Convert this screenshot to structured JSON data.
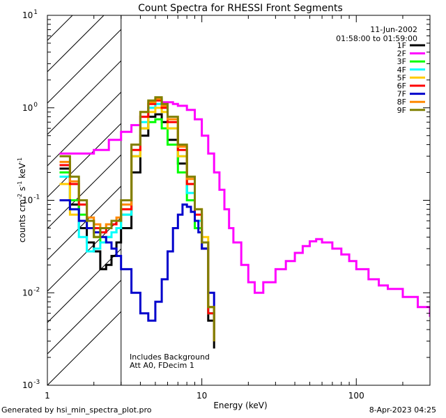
{
  "chart_data": {
    "type": "line",
    "title": "Count Spectra for RHESSI Front Segments",
    "xlabel": "Energy (keV)",
    "ylabel": "counts cm^-2 s^-1 keV^-1",
    "ylabel_parts": {
      "pre": "counts cm",
      "exp1": "-2",
      "mid": " s",
      "exp2": "-1",
      "mid2": " keV",
      "exp3": "-1"
    },
    "x_scale": "log",
    "y_scale": "log",
    "xlim": [
      1,
      300
    ],
    "ylim": [
      0.001,
      10
    ],
    "x_ticks": [
      {
        "value": 1,
        "label": "1"
      },
      {
        "value": 10,
        "label": "10"
      },
      {
        "value": 100,
        "label": "100"
      }
    ],
    "y_ticks": [
      {
        "value": 0.001,
        "base": "10",
        "exp": "-3"
      },
      {
        "value": 0.01,
        "base": "10",
        "exp": "-2"
      },
      {
        "value": 0.1,
        "base": "10",
        "exp": "-1"
      },
      {
        "value": 1,
        "base": "10",
        "exp": "0"
      },
      {
        "value": 10,
        "base": "10",
        "exp": "1"
      }
    ],
    "hatched_region_keV": [
      1,
      3
    ],
    "date": "11-Jun-2002",
    "time_range": "01:58:00 to 01:59:00",
    "annotations": [
      "Includes Background",
      "Att A0, FDecim 1"
    ],
    "legend_position": "top-right",
    "series": [
      {
        "name": "1F",
        "color": "#000000",
        "x": [
          1.2,
          1.4,
          1.6,
          1.8,
          2.0,
          2.2,
          2.4,
          2.6,
          2.8,
          3.0,
          3.5,
          4.0,
          4.5,
          5.0,
          5.5,
          6.0,
          7.0,
          8.0,
          9.0,
          10.0,
          11.0,
          12.0
        ],
        "y": [
          0.22,
          0.09,
          0.05,
          0.035,
          0.028,
          0.018,
          0.02,
          0.025,
          0.035,
          0.05,
          0.2,
          0.5,
          0.8,
          0.85,
          0.7,
          0.45,
          0.25,
          0.12,
          0.06,
          0.03,
          0.005,
          0.0025
        ]
      },
      {
        "name": "2F",
        "color": "#ff00ff",
        "x": [
          1.2,
          1.5,
          2.0,
          2.5,
          3.0,
          3.5,
          4.0,
          4.5,
          5.0,
          5.5,
          6.0,
          6.5,
          7.0,
          8.0,
          9.0,
          10.0,
          11.0,
          12.0,
          13.0,
          14.0,
          15.0,
          16.0,
          18.0,
          20.0,
          22.0,
          25.0,
          30.0,
          35.0,
          40.0,
          45.0,
          50.0,
          55.0,
          60.0,
          70.0,
          80.0,
          90.0,
          100.0,
          120.0,
          140.0,
          160.0,
          200.0,
          250.0,
          300.0
        ],
        "y": [
          0.32,
          0.32,
          0.35,
          0.45,
          0.55,
          0.65,
          0.8,
          1.0,
          1.1,
          1.15,
          1.15,
          1.1,
          1.05,
          0.95,
          0.75,
          0.5,
          0.32,
          0.2,
          0.13,
          0.08,
          0.05,
          0.035,
          0.02,
          0.013,
          0.01,
          0.013,
          0.018,
          0.022,
          0.027,
          0.032,
          0.036,
          0.038,
          0.035,
          0.03,
          0.026,
          0.022,
          0.018,
          0.014,
          0.012,
          0.011,
          0.009,
          0.007,
          0.0055
        ]
      },
      {
        "name": "3F",
        "color": "#00ff00",
        "x": [
          1.2,
          1.4,
          1.6,
          1.8,
          2.0,
          2.2,
          2.4,
          2.6,
          2.8,
          3.0,
          3.5,
          4.0,
          4.5,
          5.0,
          5.5,
          6.0,
          7.0,
          8.0,
          9.0,
          10.0,
          11.0,
          12.0
        ],
        "y": [
          0.2,
          0.1,
          0.07,
          0.05,
          0.04,
          0.035,
          0.04,
          0.045,
          0.05,
          0.07,
          0.3,
          0.6,
          0.7,
          0.75,
          0.6,
          0.4,
          0.2,
          0.1,
          0.05,
          0.03,
          0.006,
          0.003
        ]
      },
      {
        "name": "4F",
        "color": "#00ffff",
        "x": [
          1.2,
          1.4,
          1.6,
          1.8,
          2.0,
          2.2,
          2.4,
          2.6,
          2.8,
          3.0,
          3.5,
          4.0,
          4.5,
          5.0,
          5.5,
          6.0,
          7.0,
          8.0,
          9.0,
          10.0,
          11.0,
          12.0
        ],
        "y": [
          0.18,
          0.08,
          0.04,
          0.028,
          0.03,
          0.035,
          0.04,
          0.045,
          0.05,
          0.07,
          0.3,
          0.7,
          1.0,
          1.1,
          0.9,
          0.6,
          0.3,
          0.12,
          0.06,
          0.03,
          0.006,
          0.003
        ]
      },
      {
        "name": "5F",
        "color": "#ffcc00",
        "x": [
          1.2,
          1.4,
          1.6,
          1.8,
          2.0,
          2.2,
          2.4,
          2.6,
          2.8,
          3.0,
          3.5,
          4.0,
          4.5,
          5.0,
          5.5,
          6.0,
          7.0,
          8.0,
          9.0,
          10.0,
          11.0,
          12.0
        ],
        "y": [
          0.15,
          0.07,
          0.06,
          0.05,
          0.04,
          0.05,
          0.055,
          0.06,
          0.06,
          0.08,
          0.3,
          0.6,
          0.9,
          1.0,
          0.9,
          0.6,
          0.3,
          0.15,
          0.08,
          0.04,
          0.007,
          0.003
        ]
      },
      {
        "name": "6F",
        "color": "#ff0000",
        "x": [
          1.2,
          1.4,
          1.6,
          1.8,
          2.0,
          2.2,
          2.4,
          2.6,
          2.8,
          3.0,
          3.5,
          4.0,
          4.5,
          5.0,
          5.5,
          6.0,
          7.0,
          8.0,
          9.0,
          10.0,
          11.0,
          12.0
        ],
        "y": [
          0.24,
          0.15,
          0.09,
          0.06,
          0.05,
          0.045,
          0.05,
          0.055,
          0.06,
          0.08,
          0.35,
          0.8,
          1.1,
          1.2,
          1.0,
          0.7,
          0.35,
          0.15,
          0.07,
          0.03,
          0.006,
          0.003
        ]
      },
      {
        "name": "7F",
        "color": "#0000cc",
        "x": [
          1.2,
          1.4,
          1.6,
          1.8,
          2.0,
          2.2,
          2.4,
          2.6,
          2.8,
          3.0,
          3.5,
          4.0,
          4.5,
          5.0,
          5.5,
          6.0,
          6.5,
          7.0,
          7.5,
          8.0,
          8.5,
          9.0,
          9.5,
          10.0,
          11.0,
          12.0
        ],
        "y": [
          0.1,
          0.08,
          0.06,
          0.05,
          0.045,
          0.04,
          0.035,
          0.03,
          0.025,
          0.018,
          0.01,
          0.006,
          0.005,
          0.008,
          0.014,
          0.028,
          0.05,
          0.07,
          0.09,
          0.085,
          0.075,
          0.06,
          0.045,
          0.03,
          0.01,
          0.004
        ]
      },
      {
        "name": "8F",
        "color": "#ff8800",
        "x": [
          1.2,
          1.4,
          1.6,
          1.8,
          2.0,
          2.2,
          2.4,
          2.6,
          2.8,
          3.0,
          3.5,
          4.0,
          4.5,
          5.0,
          5.5,
          6.0,
          7.0,
          8.0,
          9.0,
          10.0,
          11.0,
          12.0
        ],
        "y": [
          0.26,
          0.16,
          0.1,
          0.065,
          0.055,
          0.05,
          0.055,
          0.06,
          0.065,
          0.09,
          0.4,
          0.9,
          1.15,
          1.25,
          1.05,
          0.75,
          0.38,
          0.17,
          0.08,
          0.035,
          0.007,
          0.003
        ]
      },
      {
        "name": "9F",
        "color": "#808000",
        "x": [
          1.2,
          1.4,
          1.6,
          1.8,
          2.0,
          2.2,
          2.4,
          2.6,
          2.8,
          3.0,
          3.5,
          4.0,
          4.5,
          5.0,
          5.5,
          6.0,
          7.0,
          8.0,
          9.0,
          10.0,
          11.0,
          12.0
        ],
        "y": [
          0.3,
          0.18,
          0.1,
          0.06,
          0.04,
          0.05,
          0.05,
          0.06,
          0.06,
          0.1,
          0.4,
          0.9,
          1.2,
          1.3,
          1.1,
          0.8,
          0.4,
          0.18,
          0.08,
          0.035,
          0.007,
          0.003
        ]
      }
    ]
  },
  "footer": {
    "left": "Generated by hsi_min_spectra_plot.pro",
    "right": "8-Apr-2023 04:25"
  }
}
